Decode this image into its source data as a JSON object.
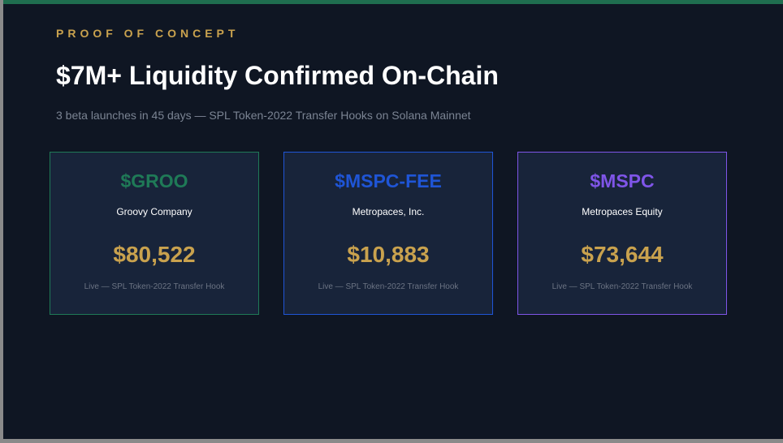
{
  "header": {
    "eyebrow": "PROOF OF CONCEPT",
    "title": "$7M+ Liquidity Confirmed On-Chain",
    "subtitle": "3 beta launches in 45 days — SPL Token-2022 Transfer Hooks on Solana Mainnet"
  },
  "colors": {
    "background": "#0f1623",
    "card_background": "#18243a",
    "top_bar": "#1f6e4f",
    "gold": "#c9a24e",
    "green": "#1f7a57",
    "blue": "#1f55d6",
    "purple": "#7f55e8"
  },
  "cards": [
    {
      "ticker": "$GROO",
      "company": "Groovy Company",
      "amount": "$80,522",
      "status": "Live — SPL Token-2022 Transfer Hook",
      "accent": "#1f7a57"
    },
    {
      "ticker": "$MSPC-FEE",
      "company": "Metropaces, Inc.",
      "amount": "$10,883",
      "status": "Live — SPL Token-2022 Transfer Hook",
      "accent": "#1f55d6"
    },
    {
      "ticker": "$MSPC",
      "company": "Metropaces Equity",
      "amount": "$73,644",
      "status": "Live — SPL Token-2022 Transfer Hook",
      "accent": "#7f55e8"
    }
  ]
}
